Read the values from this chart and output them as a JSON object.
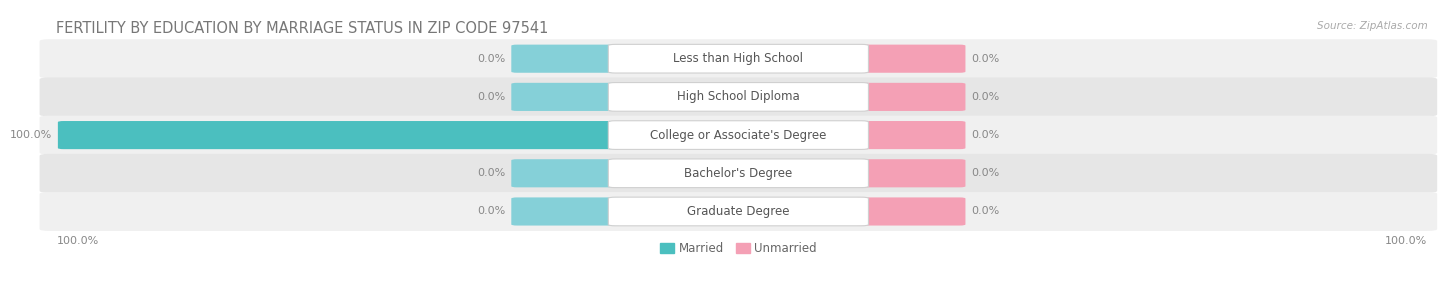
{
  "title": "FERTILITY BY EDUCATION BY MARRIAGE STATUS IN ZIP CODE 97541",
  "source": "Source: ZipAtlas.com",
  "categories": [
    "Less than High School",
    "High School Diploma",
    "College or Associate's Degree",
    "Bachelor's Degree",
    "Graduate Degree"
  ],
  "married_values": [
    0.0,
    0.0,
    100.0,
    0.0,
    0.0
  ],
  "unmarried_values": [
    0.0,
    0.0,
    0.0,
    0.0,
    0.0
  ],
  "married_color": "#4bbfbf",
  "married_stub_color": "#85d0d8",
  "unmarried_color": "#f4a0b5",
  "row_bg_color_odd": "#f0f0f0",
  "row_bg_color_even": "#e6e6e6",
  "label_box_color": "#ffffff",
  "background_color": "#ffffff",
  "title_color": "#777777",
  "source_color": "#aaaaaa",
  "value_color": "#888888",
  "legend_color": "#666666",
  "title_fontsize": 10.5,
  "label_fontsize": 8.5,
  "value_fontsize": 8,
  "source_fontsize": 7.5,
  "max_val": 100.0,
  "axis_label_left": "100.0%",
  "axis_label_right": "100.0%"
}
